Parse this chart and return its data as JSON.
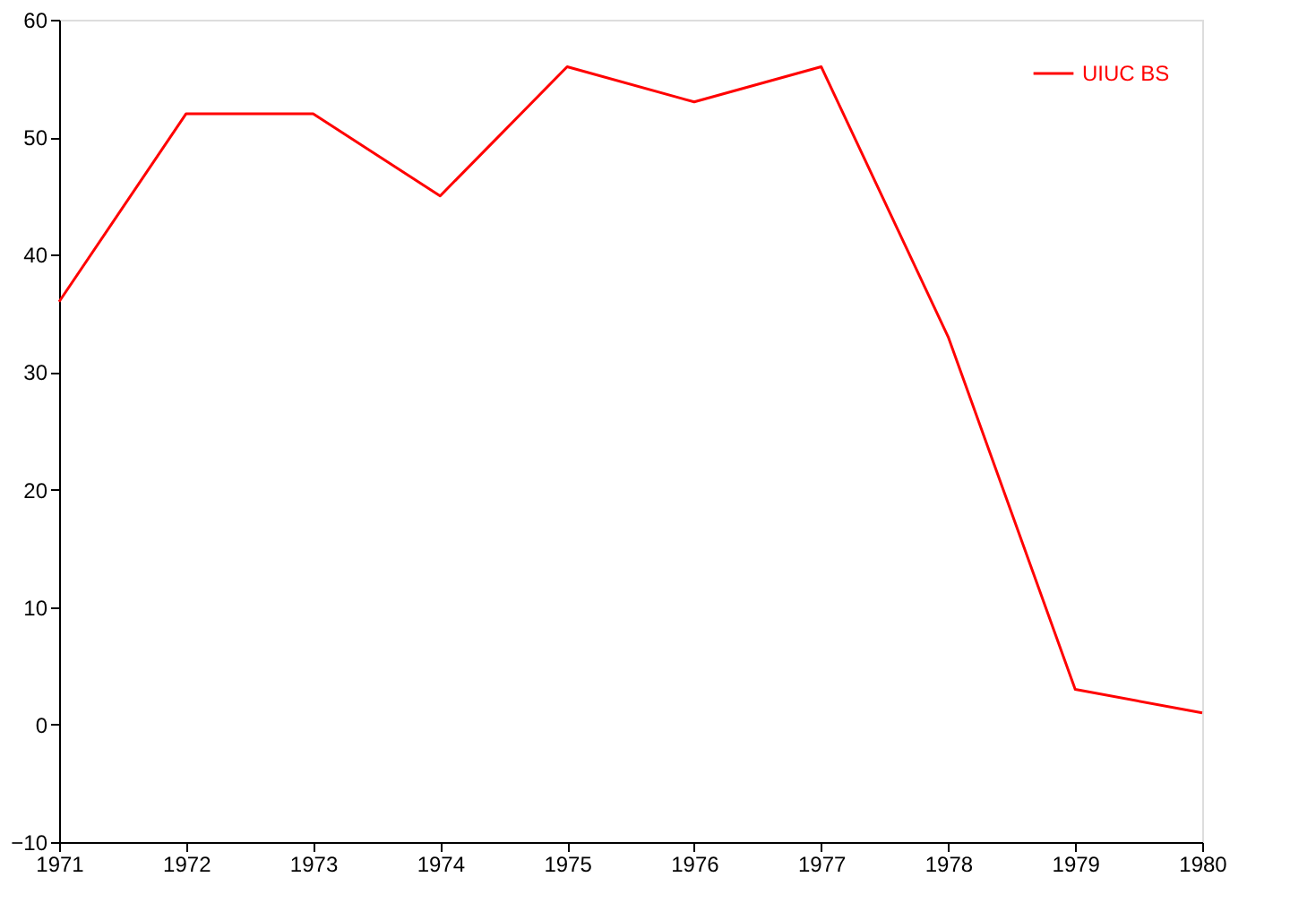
{
  "chart_data": {
    "type": "line",
    "x": [
      1971,
      1972,
      1973,
      1974,
      1975,
      1976,
      1977,
      1978,
      1979,
      1980
    ],
    "series": [
      {
        "name": "UIUC BS",
        "color": "#ff0000",
        "values": [
          36,
          52,
          52,
          45,
          56,
          53,
          56,
          33,
          3,
          1
        ]
      }
    ],
    "xlim": [
      1971,
      1980
    ],
    "xticks": [
      1971,
      1972,
      1973,
      1974,
      1975,
      1976,
      1977,
      1978,
      1979,
      1980
    ],
    "ylim": [
      -10,
      60
    ],
    "yticks": [
      -10,
      0,
      10,
      20,
      30,
      40,
      50,
      60
    ],
    "grid": false,
    "legend": "top right",
    "marker": "none",
    "line_style": "solid"
  }
}
